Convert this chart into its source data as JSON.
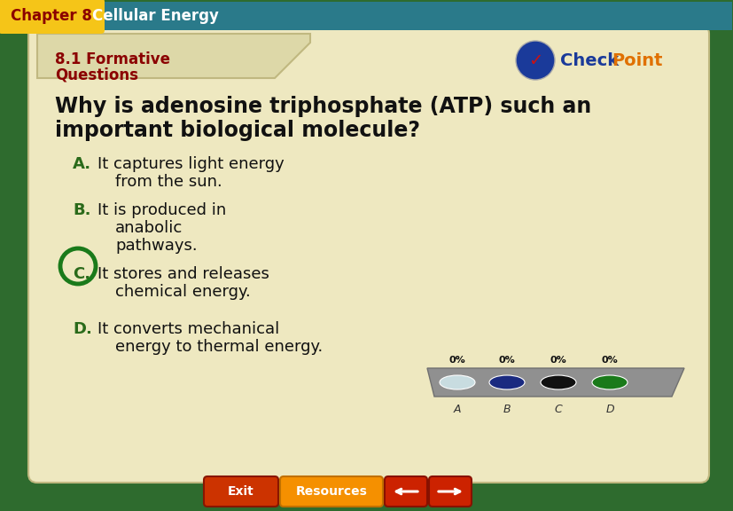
{
  "chapter_label": "Chapter 8",
  "chapter_title": "Cellular Energy",
  "section_line1": "8.1 Formative",
  "section_line2": "Questions",
  "question_line1": "Why is adenosine triphosphate (ATP) such an",
  "question_line2": "important biological molecule?",
  "answer_A_letter": "A.",
  "answer_A_line1": "It captures light energy",
  "answer_A_line2": "from the sun.",
  "answer_B_letter": "B.",
  "answer_B_line1": "It is produced in",
  "answer_B_line2": "anabolic",
  "answer_B_line3": "pathways.",
  "answer_C_letter": "C.",
  "answer_C_line1": "It stores and releases",
  "answer_C_line2": "chemical energy.",
  "answer_D_letter": "D.",
  "answer_D_line1": "It converts mechanical",
  "answer_D_line2": "energy to thermal energy.",
  "bg_outer": "#2e6b2e",
  "bg_header_yellow": "#f5c518",
  "bg_header_teal": "#2a7a8a",
  "header_chapter_color": "#8b0000",
  "header_title_color": "#ffffff",
  "tab_color": "#ddd8a8",
  "main_bg": "#eee8c0",
  "section_label_color": "#8b0000",
  "question_color": "#111111",
  "answer_color": "#111111",
  "letter_color": "#2a6a1a",
  "circle_color": "#1a7a1a",
  "poll_pct_color": "#111111",
  "poll_colors": [
    "#c8dce0",
    "#1a2a80",
    "#111111",
    "#1a7a1a"
  ],
  "exit_btn_color": "#cc3300",
  "resources_btn_color": "#f59000",
  "arrow_btn_color": "#cc2200",
  "checkpoint_blue": "#1a3a9a",
  "checkpoint_check": "#cc1111",
  "checkpoint_check_word": "#1a3a9a",
  "checkpoint_point_word": "#e07000"
}
